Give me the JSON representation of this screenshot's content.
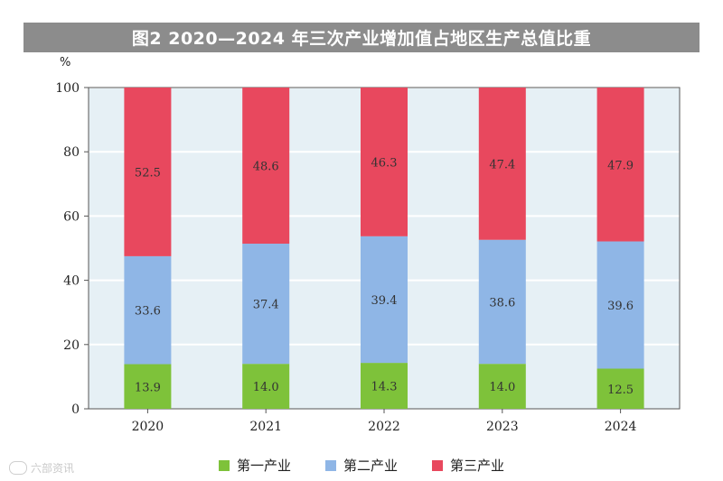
{
  "title": "图2  2020—2024 年三次产业增加值占地区生产总值比重",
  "unit": "%",
  "watermark": "六部资讯",
  "colors": {
    "primary": "#7ec23a",
    "secondary": "#8fb6e6",
    "tertiary": "#e8485e",
    "background": "#e6f0f5",
    "title_bar": "#8c8c8c"
  },
  "chart_data": {
    "type": "bar",
    "stacked": true,
    "categories": [
      "2020",
      "2021",
      "2022",
      "2023",
      "2024"
    ],
    "series": [
      {
        "name": "第一产业",
        "values": [
          13.9,
          14.0,
          14.3,
          14.0,
          12.5
        ],
        "labels": [
          "13.9",
          "14.0",
          "14.3",
          "14.0",
          "12.5"
        ]
      },
      {
        "name": "第二产业",
        "values": [
          33.6,
          37.4,
          39.4,
          38.6,
          39.6
        ],
        "labels": [
          "33.6",
          "37.4",
          "39.4",
          "38.6",
          "39.6"
        ]
      },
      {
        "name": "第三产业",
        "values": [
          52.5,
          48.6,
          46.3,
          47.4,
          47.9
        ],
        "labels": [
          "52.5",
          "48.6",
          "46.3",
          "47.4",
          "47.9"
        ]
      }
    ],
    "ylim": [
      0,
      100
    ],
    "yticks": [
      "0",
      "20",
      "40",
      "60",
      "80",
      "100"
    ],
    "ylabel": "%",
    "grid": true,
    "legend_position": "bottom"
  }
}
